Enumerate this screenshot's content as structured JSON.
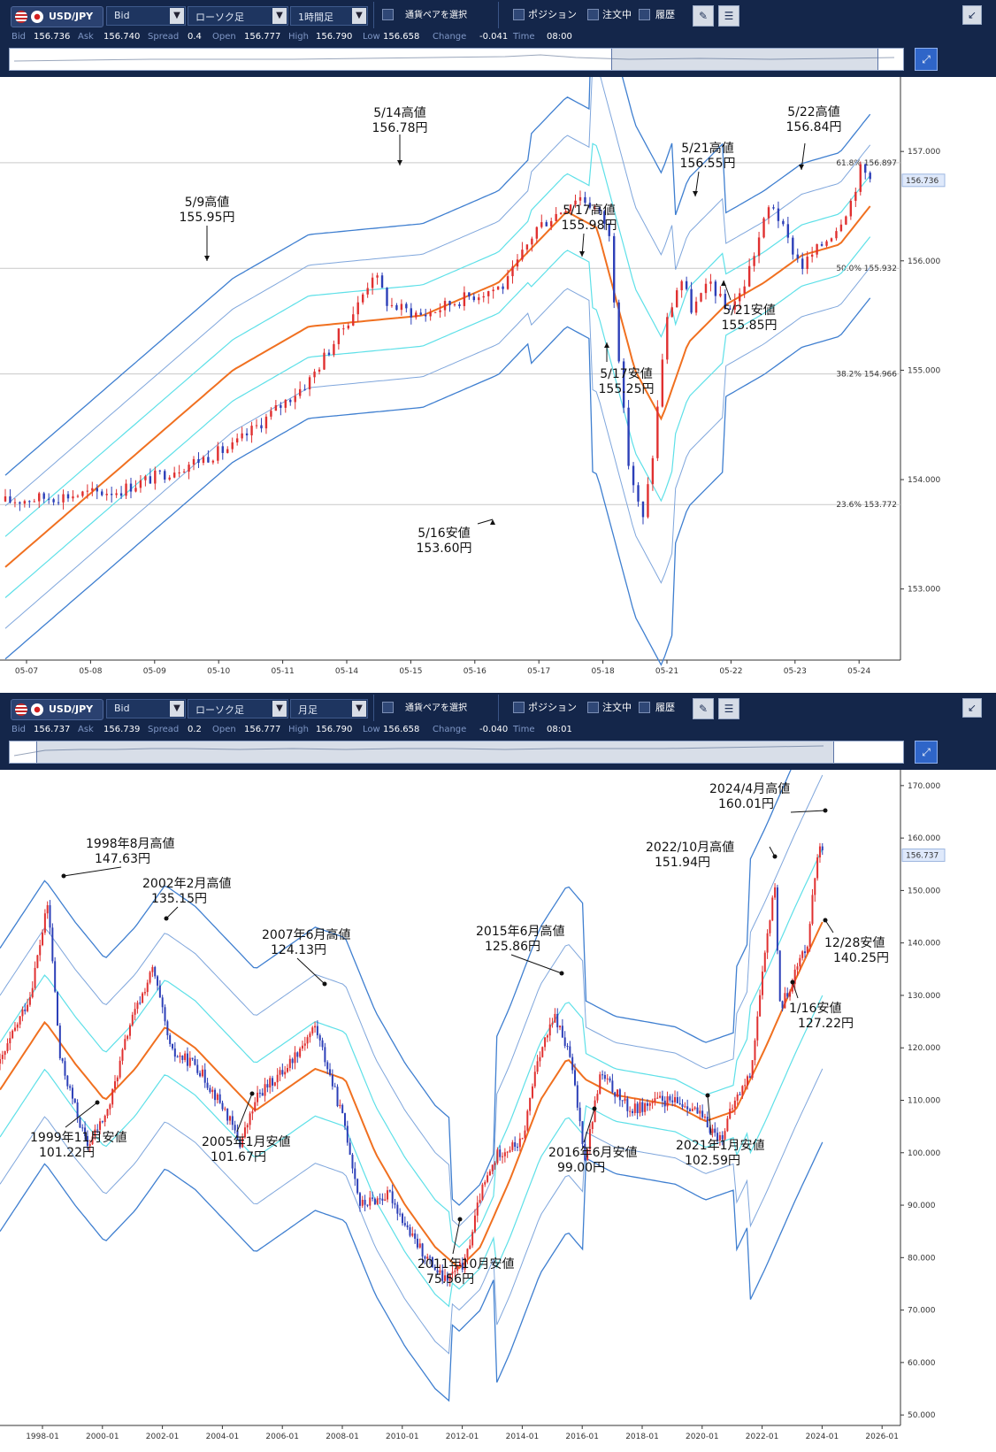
{
  "panels": [
    {
      "toolbar": {
        "pair": "USD/JPY",
        "price_type": "Bid",
        "chart_type": "ローソク足",
        "timeframe": "1時間足",
        "pair_select": "通貨ペアを選択",
        "positions": "ポジション",
        "orders": "注文中",
        "history": "履歴"
      },
      "quote": {
        "bid_label": "Bid",
        "bid": "156.736",
        "ask_label": "Ask",
        "ask": "156.740",
        "spread_label": "Spread",
        "spread": "0.4",
        "open_label": "Open",
        "open": "156.777",
        "high_label": "High",
        "high": "156.790",
        "low_label": "Low",
        "low": "156.658",
        "change_label": "Change",
        "change": "-0.041",
        "time_label": "Time",
        "time": "08:00"
      }
    },
    {
      "toolbar": {
        "pair": "USD/JPY",
        "price_type": "Bid",
        "chart_type": "ローソク足",
        "timeframe": "月足",
        "pair_select": "通貨ペアを選択",
        "positions": "ポジション",
        "orders": "注文中",
        "history": "履歴"
      },
      "quote": {
        "bid_label": "Bid",
        "bid": "156.737",
        "ask_label": "Ask",
        "ask": "156.739",
        "spread_label": "Spread",
        "spread": "0.2",
        "open_label": "Open",
        "open": "156.777",
        "high_label": "High",
        "high": "156.790",
        "low_label": "Low",
        "low": "156.658",
        "change_label": "Change",
        "change": "-0.040",
        "time_label": "Time",
        "time": "08:01"
      }
    }
  ],
  "chart_data": [
    {
      "type": "candlestick",
      "timeframe": "1時間足",
      "x_labels": [
        "05-07",
        "05-08",
        "05-09",
        "05-10",
        "05-11",
        "05-14",
        "05-15",
        "05-16",
        "05-17",
        "05-18",
        "05-21",
        "05-22",
        "05-23",
        "05-24"
      ],
      "y_ticks": [
        "157.000",
        "156.000",
        "155.000",
        "154.000",
        "153.000"
      ],
      "ylim": [
        152.35,
        157.6
      ],
      "current_price": "156.736",
      "fibonacci": [
        {
          "label": "61.8%",
          "value": "156.897"
        },
        {
          "label": "50.0%",
          "value": "155.932"
        },
        {
          "label": "38.2%",
          "value": "154.966"
        },
        {
          "label": "23.6%",
          "value": "153.772"
        }
      ],
      "price_path": [
        [
          0,
          153.8
        ],
        [
          3,
          153.9
        ],
        [
          6,
          154.3
        ],
        [
          8,
          154.9
        ],
        [
          9.3,
          155.6
        ],
        [
          9.7,
          155.9
        ],
        [
          10.1,
          155.6
        ],
        [
          11,
          155.5
        ],
        [
          12,
          155.65
        ],
        [
          13.2,
          155.78
        ],
        [
          14,
          156.3
        ],
        [
          14.6,
          156.45
        ],
        [
          15.1,
          156.6
        ],
        [
          15.5,
          156.5
        ],
        [
          15.9,
          156.3
        ],
        [
          16.4,
          154.2
        ],
        [
          16.8,
          153.6
        ],
        [
          17.1,
          154.3
        ],
        [
          17.4,
          155.4
        ],
        [
          17.8,
          155.85
        ],
        [
          18.1,
          155.55
        ],
        [
          18.6,
          155.8
        ],
        [
          19.0,
          155.55
        ],
        [
          19.4,
          155.7
        ],
        [
          20,
          156.35
        ],
        [
          20.2,
          156.55
        ],
        [
          20.6,
          156.2
        ],
        [
          21,
          155.95
        ],
        [
          21.4,
          156.1
        ],
        [
          21.9,
          156.3
        ],
        [
          22.3,
          156.55
        ],
        [
          22.55,
          156.84
        ],
        [
          22.8,
          156.75
        ]
      ],
      "moving_average": [
        [
          0,
          153.2
        ],
        [
          3,
          154.1
        ],
        [
          6,
          155
        ],
        [
          8,
          155.4
        ],
        [
          11,
          155.5
        ],
        [
          13,
          155.8
        ],
        [
          14.8,
          156.45
        ],
        [
          15.6,
          156.3
        ],
        [
          16.6,
          155
        ],
        [
          17.3,
          154.55
        ],
        [
          18,
          155.25
        ],
        [
          19,
          155.6
        ],
        [
          20,
          155.8
        ],
        [
          21,
          156.05
        ],
        [
          22,
          156.15
        ],
        [
          22.8,
          156.5
        ]
      ],
      "annotations": [
        {
          "date": "5/9",
          "kind": "高値",
          "price": "155.95円"
        },
        {
          "date": "5/14",
          "kind": "高値",
          "price": "156.78円"
        },
        {
          "date": "5/16",
          "kind": "安値",
          "price": "153.60円"
        },
        {
          "date": "5/17",
          "kind": "高値",
          "price": "155.98円"
        },
        {
          "date": "5/17",
          "kind": "安値",
          "price": "155.25円"
        },
        {
          "date": "5/21",
          "kind": "高値",
          "price": "156.55円"
        },
        {
          "date": "5/21",
          "kind": "安値",
          "price": "155.85円"
        },
        {
          "date": "5/22",
          "kind": "高値",
          "price": "156.84円"
        }
      ]
    },
    {
      "type": "candlestick",
      "timeframe": "月足",
      "x_labels": [
        "1998-01",
        "2000-01",
        "2002-01",
        "2004-01",
        "2006-01",
        "2008-01",
        "2010-01",
        "2012-01",
        "2014-01",
        "2016-01",
        "2018-01",
        "2020-01",
        "2022-01",
        "2024-01",
        "2026-01"
      ],
      "y_ticks": [
        "170.000",
        "160.000",
        "150.000",
        "140.000",
        "130.000",
        "120.000",
        "110.000",
        "100.000",
        "90.000",
        "80.000",
        "70.000",
        "60.000",
        "50.000"
      ],
      "ylim": [
        48,
        172
      ],
      "current_price": "156.737",
      "price_path": [
        [
          1997.0,
          117
        ],
        [
          1998.0,
          130
        ],
        [
          1998.6,
          147.63
        ],
        [
          1999.0,
          118
        ],
        [
          1999.9,
          101.22
        ],
        [
          2000.6,
          108
        ],
        [
          2001.3,
          124
        ],
        [
          2002.1,
          135.15
        ],
        [
          2002.7,
          119
        ],
        [
          2003.5,
          117
        ],
        [
          2004.5,
          108
        ],
        [
          2005.0,
          101.67
        ],
        [
          2005.6,
          111
        ],
        [
          2006.5,
          116
        ],
        [
          2007.5,
          124.13
        ],
        [
          2008.5,
          105
        ],
        [
          2009.0,
          90
        ],
        [
          2010.0,
          92
        ],
        [
          2010.7,
          84
        ],
        [
          2011.8,
          75.56
        ],
        [
          2012.5,
          79
        ],
        [
          2013.0,
          92
        ],
        [
          2013.6,
          100
        ],
        [
          2014.4,
          102
        ],
        [
          2014.9,
          118
        ],
        [
          2015.5,
          125.86
        ],
        [
          2016.0,
          118
        ],
        [
          2016.5,
          99.0
        ],
        [
          2017.0,
          115
        ],
        [
          2018.0,
          108
        ],
        [
          2019.0,
          110
        ],
        [
          2020.0,
          109
        ],
        [
          2021.0,
          102.59
        ],
        [
          2021.5,
          110
        ],
        [
          2022.0,
          115
        ],
        [
          2022.8,
          151.94
        ],
        [
          2023.0,
          127.22
        ],
        [
          2023.9,
          140.25
        ],
        [
          2024.3,
          160.01
        ],
        [
          2024.4,
          156.74
        ]
      ],
      "moving_average": [
        [
          1997,
          112
        ],
        [
          1998.5,
          125
        ],
        [
          1999.5,
          117
        ],
        [
          2000.5,
          110
        ],
        [
          2001.5,
          116
        ],
        [
          2002.5,
          124
        ],
        [
          2003.5,
          120
        ],
        [
          2004.5,
          114
        ],
        [
          2005.5,
          108
        ],
        [
          2006.5,
          112
        ],
        [
          2007.5,
          116
        ],
        [
          2008.5,
          114
        ],
        [
          2009.5,
          100
        ],
        [
          2010.5,
          90
        ],
        [
          2011.5,
          82
        ],
        [
          2012.3,
          78
        ],
        [
          2013,
          82
        ],
        [
          2014,
          95
        ],
        [
          2015,
          110
        ],
        [
          2015.9,
          118
        ],
        [
          2016.5,
          114
        ],
        [
          2017.5,
          111
        ],
        [
          2018.5,
          110
        ],
        [
          2019.5,
          109
        ],
        [
          2020.5,
          106
        ],
        [
          2021.5,
          108
        ],
        [
          2022.5,
          120
        ],
        [
          2023.5,
          133
        ],
        [
          2024.4,
          144
        ]
      ],
      "annotations": [
        {
          "label": "1998年8月高値",
          "price": "147.63円"
        },
        {
          "label": "1999年11月安値",
          "price": "101.22円"
        },
        {
          "label": "2002年2月高値",
          "price": "135.15円"
        },
        {
          "label": "2005年1月安値",
          "price": "101.67円"
        },
        {
          "label": "2007年6月高値",
          "price": "124.13円"
        },
        {
          "label": "2011年10月安値",
          "price": "75.56円"
        },
        {
          "label": "2015年6月高値",
          "price": "125.86円"
        },
        {
          "label": "2016年6月安値",
          "price": "99.00円"
        },
        {
          "label": "2021年1月安値",
          "price": "102.59円"
        },
        {
          "label": "2022/10月高値",
          "price": "151.94円"
        },
        {
          "label": "2024/4月高値",
          "price": "160.01円"
        },
        {
          "label": "12/28安値",
          "price": "140.25円"
        },
        {
          "label": "1/16安値",
          "price": "127.22円"
        }
      ]
    }
  ],
  "colors": {
    "toolbar_bg": "#14264a",
    "up_candle": "#e03030",
    "down_candle": "#2c3fb8",
    "ma": "#f07020",
    "band_outer": "#3f7fd0",
    "band_mid": "#7fa6dc",
    "band_inner": "#5ee0e8"
  }
}
